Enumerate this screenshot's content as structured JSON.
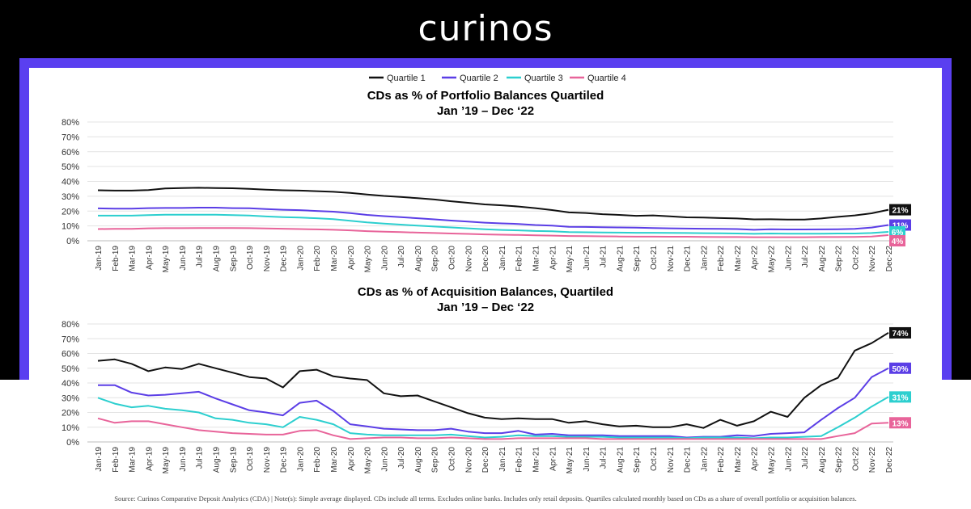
{
  "brand": {
    "logo_text": "curinos"
  },
  "legend": [
    "Quartile 1",
    "Quartile 2",
    "Quartile 3",
    "Quartile 4"
  ],
  "footnote": "Source: Curinos Comparative Deposit Analytics (CDA) | Note(s): Simple average displayed. CDs include all terms. Excludes online banks. Includes only retail deposits. Quartiles calculated monthly based on CDs as a share of overall portfolio or acquisition balances.",
  "colors": {
    "q1": "#111111",
    "q2": "#5b3ee6",
    "q3": "#2ccfcf",
    "q4": "#e8649a",
    "frame": "#5a3ff0"
  },
  "chart_data": [
    {
      "type": "line",
      "title": "CDs as % of Portfolio Balances Quartiled",
      "subtitle": "Jan ’19 – Dec ‘22",
      "xlabel": "",
      "ylabel": "",
      "ylim": [
        0,
        80
      ],
      "yticks": [
        "0%",
        "10%",
        "20%",
        "30%",
        "40%",
        "50%",
        "60%",
        "70%",
        "80%"
      ],
      "grid": true,
      "categories": [
        "Jan-19",
        "Feb-19",
        "Mar-19",
        "Apr-19",
        "May-19",
        "Jun-19",
        "Jul-19",
        "Aug-19",
        "Sep-19",
        "Oct-19",
        "Nov-19",
        "Dec-19",
        "Jan-20",
        "Feb-20",
        "Mar-20",
        "Apr-20",
        "May-20",
        "Jun-20",
        "Jul-20",
        "Aug-20",
        "Sep-20",
        "Oct-20",
        "Nov-20",
        "Dec-20",
        "Jan-21",
        "Feb-21",
        "Mar-21",
        "Apr-21",
        "May-21",
        "Jun-21",
        "Jul-21",
        "Aug-21",
        "Sep-21",
        "Oct-21",
        "Nov-21",
        "Dec-21",
        "Jan-22",
        "Feb-22",
        "Mar-22",
        "Apr-22",
        "May-22",
        "Jun-22",
        "Jul-22",
        "Aug-22",
        "Sep-22",
        "Oct-22",
        "Nov-22",
        "Dec-22"
      ],
      "series": [
        {
          "name": "Quartile 1",
          "end_label": "21%",
          "values": [
            34,
            33.8,
            33.8,
            34.2,
            35.2,
            35.5,
            35.7,
            35.5,
            35.4,
            35,
            34.4,
            34,
            33.8,
            33.4,
            33,
            32.2,
            31.2,
            30.2,
            29.5,
            28.7,
            27.8,
            26.6,
            25.6,
            24.5,
            23.9,
            23.1,
            22,
            20.7,
            19.1,
            18.7,
            17.9,
            17.4,
            16.8,
            17.1,
            16.5,
            15.8,
            15.6,
            15.3,
            15,
            14.4,
            14.5,
            14.3,
            14.3,
            15,
            16.1,
            17.1,
            18.5,
            20.9
          ]
        },
        {
          "name": "Quartile 2",
          "end_label": "11%",
          "values": [
            21.8,
            21.6,
            21.6,
            22,
            22.1,
            22.1,
            22.3,
            22.3,
            22,
            21.9,
            21.4,
            20.9,
            20.6,
            20.1,
            19.6,
            18.6,
            17.4,
            16.6,
            15.9,
            15.2,
            14.4,
            13.6,
            12.9,
            12.2,
            11.7,
            11.3,
            10.6,
            10.2,
            9.4,
            9.3,
            9.1,
            9,
            8.8,
            8.6,
            8.4,
            8.2,
            8.1,
            8,
            7.9,
            7.4,
            7.8,
            7.6,
            7.6,
            7.7,
            7.8,
            8,
            8.9,
            10.6
          ]
        },
        {
          "name": "Quartile 3",
          "end_label": "6%",
          "values": [
            16.9,
            16.9,
            16.9,
            17.3,
            17.5,
            17.6,
            17.6,
            17.5,
            17.3,
            17,
            16.4,
            15.9,
            15.6,
            15.2,
            14.6,
            13.5,
            12.4,
            11.6,
            10.9,
            10.2,
            9.6,
            9,
            8.4,
            7.8,
            7.3,
            7,
            6.6,
            6.4,
            5.8,
            5.7,
            5.6,
            5.5,
            5.4,
            5.4,
            5.3,
            5.2,
            5.1,
            5,
            4.9,
            4.7,
            4.9,
            4.8,
            4.8,
            4.8,
            4.9,
            4.9,
            5.2,
            6
          ]
        },
        {
          "name": "Quartile 4",
          "end_label": "4%",
          "values": [
            7.9,
            8,
            8,
            8.4,
            8.5,
            8.5,
            8.6,
            8.6,
            8.6,
            8.5,
            8.3,
            8.1,
            7.9,
            7.7,
            7.4,
            7,
            6.5,
            6.1,
            5.8,
            5.5,
            5.2,
            4.9,
            4.6,
            4.3,
            4.1,
            3.9,
            3.7,
            3.5,
            3.2,
            3.1,
            3,
            2.9,
            2.8,
            2.8,
            2.7,
            2.7,
            2.6,
            2.5,
            2.5,
            2.4,
            2.4,
            2.4,
            2.4,
            2.5,
            2.5,
            2.6,
            2.9,
            3.8
          ]
        }
      ]
    },
    {
      "type": "line",
      "title": "CDs as % of Acquisition Balances, Quartiled",
      "subtitle": "Jan ’19 – Dec ‘22",
      "xlabel": "",
      "ylabel": "",
      "ylim": [
        0,
        80
      ],
      "yticks": [
        "0%",
        "10%",
        "20%",
        "30%",
        "40%",
        "50%",
        "60%",
        "70%",
        "80%"
      ],
      "grid": true,
      "categories": [
        "Jan-19",
        "Feb-19",
        "Mar-19",
        "Apr-19",
        "May-19",
        "Jun-19",
        "Jul-19",
        "Aug-19",
        "Sep-19",
        "Oct-19",
        "Nov-19",
        "Dec-19",
        "Jan-20",
        "Feb-20",
        "Mar-20",
        "Apr-20",
        "May-20",
        "Jun-20",
        "Jul-20",
        "Aug-20",
        "Sep-20",
        "Oct-20",
        "Nov-20",
        "Dec-20",
        "Jan-21",
        "Feb-21",
        "Mar-21",
        "Apr-21",
        "May-21",
        "Jun-21",
        "Jul-21",
        "Aug-21",
        "Sep-21",
        "Oct-21",
        "Nov-21",
        "Dec-21",
        "Jan-22",
        "Feb-22",
        "Mar-22",
        "Apr-22",
        "May-22",
        "Jun-22",
        "Jul-22",
        "Aug-22",
        "Sep-22",
        "Oct-22",
        "Nov-22",
        "Dec-22"
      ],
      "series": [
        {
          "name": "Quartile 1",
          "end_label": "74%",
          "values": [
            55,
            56,
            53,
            48,
            50.5,
            49.5,
            53,
            50,
            47,
            44,
            43,
            37,
            48,
            49,
            44.5,
            43,
            42,
            33,
            31,
            31.5,
            27.5,
            23.5,
            19.5,
            16.5,
            15.5,
            16,
            15.5,
            15.5,
            13,
            14,
            12,
            10.5,
            11,
            10,
            10,
            12,
            9.5,
            15,
            11,
            14,
            20.5,
            17,
            30,
            38.5,
            43.5,
            62,
            67,
            74
          ]
        },
        {
          "name": "Quartile 2",
          "end_label": "50%",
          "values": [
            38.5,
            38.5,
            33.5,
            31.5,
            32,
            33,
            34,
            29.5,
            25.5,
            21.5,
            20,
            18,
            26.5,
            28,
            21,
            12,
            10.5,
            9,
            8.5,
            8,
            8,
            9,
            7,
            6,
            6,
            7.5,
            5,
            5.5,
            4.5,
            4.5,
            4.5,
            4,
            4,
            4,
            4,
            3,
            3.5,
            3.5,
            4.5,
            4,
            5.5,
            6,
            6.5,
            15,
            23,
            30,
            44,
            50
          ]
        },
        {
          "name": "Quartile 3",
          "end_label": "31%",
          "values": [
            30,
            26,
            23.5,
            24.5,
            22.5,
            21.5,
            20,
            16,
            15,
            13,
            12,
            10,
            17,
            15,
            12,
            6,
            5,
            4.5,
            4.5,
            4.5,
            4.5,
            5,
            4,
            3,
            3.5,
            4.5,
            4,
            4,
            3.5,
            3.5,
            3.5,
            3,
            3,
            3,
            3,
            2.5,
            3,
            3,
            3,
            2.5,
            3,
            3,
            3.5,
            4,
            10,
            16.5,
            24,
            30.5
          ]
        },
        {
          "name": "Quartile 4",
          "end_label": "13%",
          "values": [
            16,
            13,
            14,
            14,
            12,
            10,
            8,
            7,
            6,
            5.5,
            5,
            5,
            7.5,
            8,
            4.5,
            2,
            2.5,
            3,
            3,
            2.5,
            2.5,
            3,
            2.5,
            2,
            2,
            2.5,
            2.5,
            2.5,
            2.5,
            2.5,
            2,
            2,
            2,
            2,
            2,
            2,
            2,
            2,
            2,
            2,
            2,
            2,
            2,
            2,
            4,
            6,
            12.5,
            13
          ]
        }
      ]
    }
  ]
}
